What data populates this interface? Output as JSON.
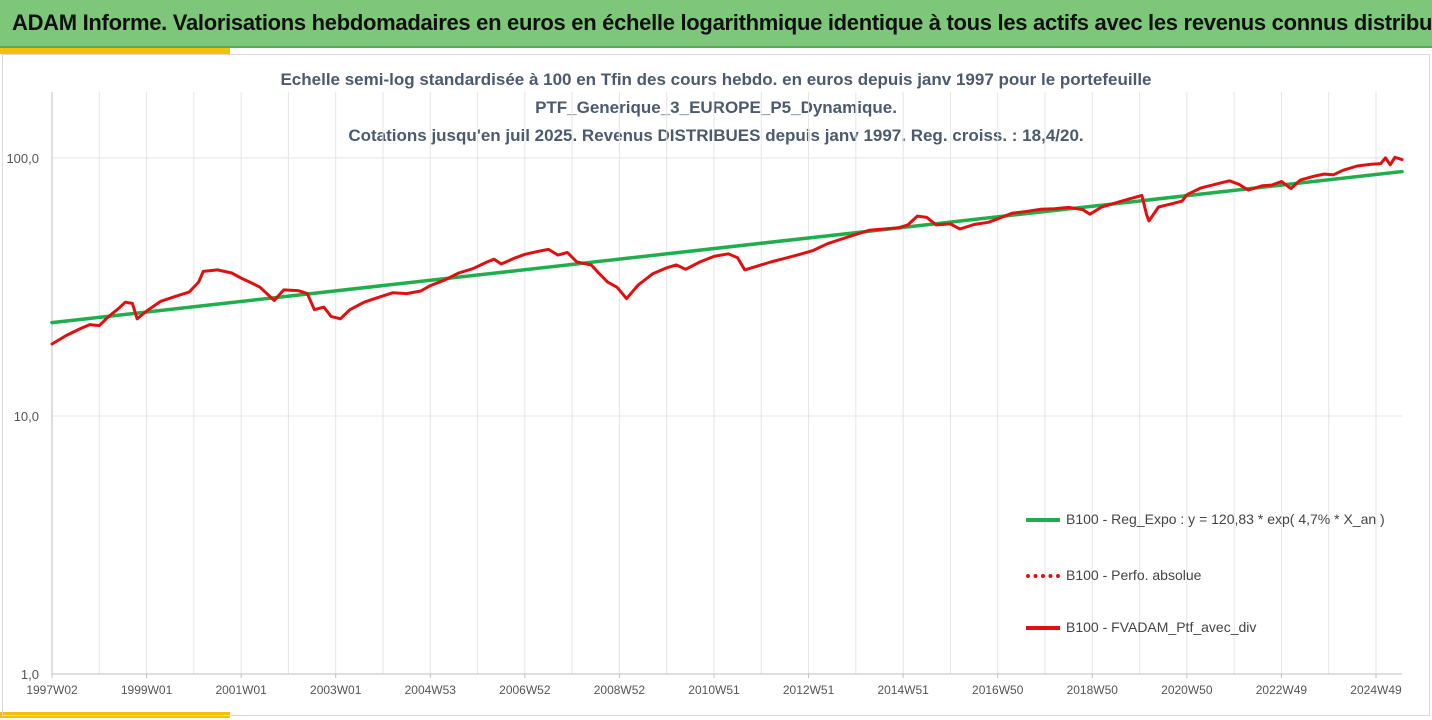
{
  "header": {
    "title": "ADAM Informe. Valorisations hebdomadaires en euros en échelle logarithmique identique à tous les actifs avec les revenus connus distribués"
  },
  "chart_data": {
    "type": "line",
    "title_lines": [
      "Echelle semi-log standardisée à 100 en Tfin des cours hebdo.  en euros depuis janv 1997 pour le portefeuille",
      "PTF_Generique_3_EUROPE_P5_Dynamique.",
      "Cotations  jusqu'en juil 2025. Revenus DISTRIBUES depuis janv 1997. Reg. croiss. : 18,4/20."
    ],
    "y_scale": "log",
    "ylim": [
      1,
      180
    ],
    "y_ticks": [
      {
        "value": 1,
        "label": "1,0"
      },
      {
        "value": 10,
        "label": "10,0"
      },
      {
        "value": 100,
        "label": "100,0"
      }
    ],
    "x_range": [
      1997.0,
      2025.55
    ],
    "x_ticks": [
      {
        "value": 1997.0,
        "label": "1997W02"
      },
      {
        "value": 1999.0,
        "label": "1999W01"
      },
      {
        "value": 2001.0,
        "label": "2001W01"
      },
      {
        "value": 2003.0,
        "label": "2003W01"
      },
      {
        "value": 2005.0,
        "label": "2004W53"
      },
      {
        "value": 2007.0,
        "label": "2006W52"
      },
      {
        "value": 2009.0,
        "label": "2008W52"
      },
      {
        "value": 2011.0,
        "label": "2010W51"
      },
      {
        "value": 2013.0,
        "label": "2012W51"
      },
      {
        "value": 2015.0,
        "label": "2014W51"
      },
      {
        "value": 2017.0,
        "label": "2016W50"
      },
      {
        "value": 2019.0,
        "label": "2018W50"
      },
      {
        "value": 2021.0,
        "label": "2020W50"
      },
      {
        "value": 2023.0,
        "label": "2022W49"
      },
      {
        "value": 2025.0,
        "label": "2024W49"
      }
    ],
    "grid": {
      "vertical": true,
      "horizontal": true
    },
    "legend_position": "bottom-right",
    "series": [
      {
        "name": "B100 - Reg_Expo : y = 120,83 * exp( 4,7% *  X_an )",
        "color": "#1fae4b",
        "style": "solid",
        "points": [
          [
            1997.0,
            23.0
          ],
          [
            2025.55,
            88.5
          ]
        ]
      },
      {
        "name": "B100 - Perfo. absolue",
        "color": "#e01010",
        "style": "dotted",
        "points": []
      },
      {
        "name": "B100 - FVADAM_Ptf_avec_div",
        "color": "#e01010",
        "style": "solid",
        "points": [
          [
            1997.0,
            19.0
          ],
          [
            1997.3,
            20.5
          ],
          [
            1997.6,
            21.8
          ],
          [
            1997.8,
            22.6
          ],
          [
            1998.0,
            22.4
          ],
          [
            1998.2,
            24.3
          ],
          [
            1998.4,
            26.0
          ],
          [
            1998.55,
            27.6
          ],
          [
            1998.7,
            27.3
          ],
          [
            1998.8,
            23.8
          ],
          [
            1999.0,
            25.5
          ],
          [
            1999.3,
            27.8
          ],
          [
            1999.6,
            29.0
          ],
          [
            1999.9,
            30.2
          ],
          [
            2000.1,
            33.0
          ],
          [
            2000.2,
            36.3
          ],
          [
            2000.5,
            36.8
          ],
          [
            2000.8,
            35.8
          ],
          [
            2001.0,
            34.2
          ],
          [
            2001.2,
            32.9
          ],
          [
            2001.4,
            31.5
          ],
          [
            2001.7,
            28.0
          ],
          [
            2001.9,
            30.8
          ],
          [
            2002.2,
            30.6
          ],
          [
            2002.4,
            29.8
          ],
          [
            2002.55,
            25.8
          ],
          [
            2002.75,
            26.4
          ],
          [
            2002.9,
            24.3
          ],
          [
            2003.1,
            23.8
          ],
          [
            2003.3,
            25.8
          ],
          [
            2003.6,
            27.6
          ],
          [
            2003.9,
            28.8
          ],
          [
            2004.2,
            30.0
          ],
          [
            2004.5,
            29.8
          ],
          [
            2004.8,
            30.5
          ],
          [
            2005.0,
            32.0
          ],
          [
            2005.3,
            33.6
          ],
          [
            2005.6,
            35.8
          ],
          [
            2005.9,
            37.2
          ],
          [
            2006.2,
            39.5
          ],
          [
            2006.35,
            40.5
          ],
          [
            2006.5,
            38.8
          ],
          [
            2006.8,
            41.0
          ],
          [
            2007.0,
            42.3
          ],
          [
            2007.3,
            43.5
          ],
          [
            2007.5,
            44.2
          ],
          [
            2007.7,
            42.0
          ],
          [
            2007.9,
            43.0
          ],
          [
            2008.1,
            39.5
          ],
          [
            2008.4,
            38.5
          ],
          [
            2008.55,
            36.0
          ],
          [
            2008.75,
            33.0
          ],
          [
            2008.95,
            31.5
          ],
          [
            2009.15,
            28.5
          ],
          [
            2009.4,
            32.2
          ],
          [
            2009.7,
            35.5
          ],
          [
            2010.0,
            37.5
          ],
          [
            2010.2,
            38.5
          ],
          [
            2010.4,
            37.0
          ],
          [
            2010.7,
            39.5
          ],
          [
            2011.0,
            41.5
          ],
          [
            2011.3,
            42.5
          ],
          [
            2011.5,
            41.0
          ],
          [
            2011.65,
            36.8
          ],
          [
            2011.9,
            38.0
          ],
          [
            2012.2,
            39.5
          ],
          [
            2012.5,
            40.8
          ],
          [
            2012.8,
            42.2
          ],
          [
            2013.1,
            43.8
          ],
          [
            2013.4,
            46.5
          ],
          [
            2013.7,
            48.5
          ],
          [
            2014.0,
            50.5
          ],
          [
            2014.3,
            52.5
          ],
          [
            2014.6,
            53.0
          ],
          [
            2014.9,
            53.6
          ],
          [
            2015.1,
            55.0
          ],
          [
            2015.3,
            59.5
          ],
          [
            2015.5,
            58.8
          ],
          [
            2015.7,
            55.0
          ],
          [
            2016.0,
            55.5
          ],
          [
            2016.2,
            53.0
          ],
          [
            2016.5,
            55.2
          ],
          [
            2016.8,
            56.3
          ],
          [
            2017.0,
            58.0
          ],
          [
            2017.3,
            61.0
          ],
          [
            2017.6,
            62.0
          ],
          [
            2017.9,
            63.2
          ],
          [
            2018.2,
            63.5
          ],
          [
            2018.5,
            64.3
          ],
          [
            2018.8,
            63.0
          ],
          [
            2018.95,
            60.5
          ],
          [
            2019.2,
            64.5
          ],
          [
            2019.5,
            67.0
          ],
          [
            2019.8,
            69.5
          ],
          [
            2020.05,
            71.5
          ],
          [
            2020.15,
            60.0
          ],
          [
            2020.2,
            57.0
          ],
          [
            2020.4,
            64.5
          ],
          [
            2020.7,
            66.5
          ],
          [
            2020.9,
            68.0
          ],
          [
            2021.0,
            72.0
          ],
          [
            2021.3,
            76.5
          ],
          [
            2021.6,
            79.0
          ],
          [
            2021.9,
            81.5
          ],
          [
            2022.1,
            79.0
          ],
          [
            2022.3,
            75.0
          ],
          [
            2022.6,
            78.0
          ],
          [
            2022.8,
            78.5
          ],
          [
            2023.0,
            81.0
          ],
          [
            2023.2,
            76.0
          ],
          [
            2023.4,
            82.0
          ],
          [
            2023.7,
            85.0
          ],
          [
            2023.9,
            86.5
          ],
          [
            2024.1,
            86.0
          ],
          [
            2024.3,
            89.5
          ],
          [
            2024.6,
            93.0
          ],
          [
            2024.9,
            94.5
          ],
          [
            2025.1,
            95.0
          ],
          [
            2025.2,
            100.0
          ],
          [
            2025.3,
            94.0
          ],
          [
            2025.4,
            100.5
          ],
          [
            2025.55,
            98.5
          ]
        ]
      }
    ]
  }
}
